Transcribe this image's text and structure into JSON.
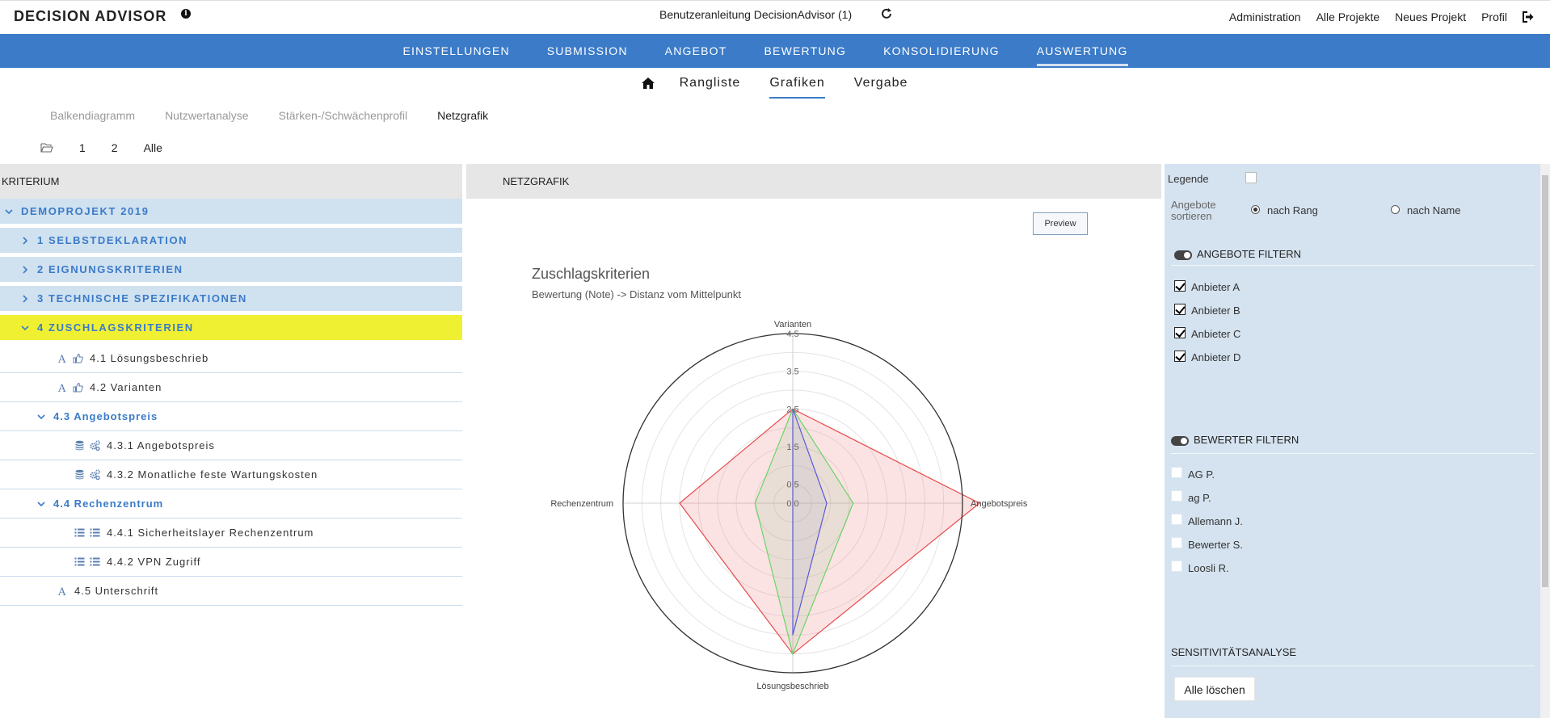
{
  "app": {
    "title": "DECISION ADVISOR",
    "document": "Benutzeranleitung DecisionAdvisor (1)"
  },
  "top_links": [
    "Administration",
    "Alle Projekte",
    "Neues Projekt",
    "Profil"
  ],
  "main_nav": [
    {
      "label": "EINSTELLUNGEN"
    },
    {
      "label": "SUBMISSION"
    },
    {
      "label": "ANGEBOT"
    },
    {
      "label": "BEWERTUNG"
    },
    {
      "label": "KONSOLIDIERUNG"
    },
    {
      "label": "AUSWERTUNG",
      "active": true
    }
  ],
  "sub_nav": [
    {
      "label": "Rangliste"
    },
    {
      "label": "Grafiken",
      "active": true
    },
    {
      "label": "Vergabe"
    }
  ],
  "chart_tabs": [
    {
      "label": "Balkendiagramm"
    },
    {
      "label": "Nutzwertanalyse"
    },
    {
      "label": "Stärken-/Schwächenprofil"
    },
    {
      "label": "Netzgrafik",
      "active": true
    }
  ],
  "page_nav": [
    "1",
    "2",
    "Alle"
  ],
  "left_panel": {
    "header": "KRITERIUM",
    "tree": [
      {
        "label": "DEMOPROJEKT 2019",
        "kind": "group",
        "level": 0,
        "expanded": true
      },
      {
        "label": "1 SELBSTDEKLARATION",
        "kind": "group",
        "level": 1
      },
      {
        "label": "2 EIGNUNGSKRITERIEN",
        "kind": "group",
        "level": 1
      },
      {
        "label": "3 TECHNISCHE SPEZIFIKATIONEN",
        "kind": "group",
        "level": 1
      },
      {
        "label": "4 ZUSCHLAGSKRITERIEN",
        "kind": "group",
        "level": 1,
        "expanded": true,
        "highlight": true
      },
      {
        "label": "4.1 Lösungsbeschrieb",
        "kind": "leaf",
        "level": 2,
        "icons": [
          "text-icon",
          "thumb-up-icon"
        ]
      },
      {
        "label": "4.2 Varianten",
        "kind": "leaf",
        "level": 2,
        "icons": [
          "text-icon",
          "thumb-up-icon"
        ]
      },
      {
        "label": "4.3 Angebotspreis",
        "kind": "sub",
        "level": 2,
        "expanded": true
      },
      {
        "label": "4.3.1 Angebotspreis",
        "kind": "leaf",
        "level": 3,
        "icons": [
          "database-icon",
          "gears-icon"
        ]
      },
      {
        "label": "4.3.2 Monatliche feste Wartungskosten",
        "kind": "leaf",
        "level": 3,
        "icons": [
          "database-icon",
          "gears-icon"
        ]
      },
      {
        "label": "4.4 Rechenzentrum",
        "kind": "sub",
        "level": 2,
        "expanded": true
      },
      {
        "label": "4.4.1 Sicherheitslayer Rechenzentrum",
        "kind": "leaf",
        "level": 3,
        "icons": [
          "list-icon",
          "list-icon"
        ]
      },
      {
        "label": "4.4.2 VPN Zugriff",
        "kind": "leaf",
        "level": 3,
        "icons": [
          "list-icon",
          "list-icon"
        ]
      },
      {
        "label": "4.5 Unterschrift",
        "kind": "leaf",
        "level": 1.5,
        "icons": [
          "text-icon"
        ]
      }
    ]
  },
  "center_panel": {
    "header": "NETZGRAFIK",
    "preview_label": "Preview"
  },
  "chart_data": {
    "type": "radar",
    "title": "Zuschlagskriterien",
    "subtitle": "Bewertung (Note) -> Distanz vom Mittelpunkt",
    "axes": [
      "Varianten",
      "Angebotspreis",
      "Lösungsbeschrieb",
      "Rechenzentrum"
    ],
    "r_range": [
      0,
      4.5
    ],
    "tick_labels": [
      "0.0",
      "0.5",
      "1.5",
      "2.5",
      "3.5",
      "4.5"
    ],
    "tick_values": [
      0,
      0.5,
      1.5,
      2.5,
      3.5,
      4.5
    ],
    "grid_values": [
      0.5,
      1,
      1.5,
      2,
      2.5,
      3,
      3.5,
      4,
      4.5
    ],
    "series": [
      {
        "color": "#e8494b",
        "fill": "rgba(240,128,128,0.22)",
        "values": [
          2.5,
          4.95,
          4.0,
          3.0
        ]
      },
      {
        "color": "#6ad46a",
        "fill": "rgba(150,200,150,0.18)",
        "values": [
          2.5,
          1.6,
          4.0,
          1.0
        ]
      },
      {
        "color": "#5a5ad8",
        "fill": "rgba(140,140,200,0.12)",
        "values": [
          2.5,
          0.9,
          3.5,
          0.0
        ]
      }
    ]
  },
  "right_panel": {
    "legend_label": "Legende",
    "sort_label": "Angebote sortieren",
    "sort_by_rank": "nach Rang",
    "sort_by_name": "nach Name",
    "offers_filter_title": "ANGEBOTE FILTERN",
    "offers": [
      {
        "label": "Anbieter A",
        "checked": true
      },
      {
        "label": "Anbieter B",
        "checked": true
      },
      {
        "label": "Anbieter C",
        "checked": true
      },
      {
        "label": "Anbieter D",
        "checked": true
      }
    ],
    "raters_filter_title": "BEWERTER FILTERN",
    "raters": [
      {
        "label": "AG P.",
        "checked": false
      },
      {
        "label": "ag P.",
        "checked": false
      },
      {
        "label": "Allemann J.",
        "checked": false
      },
      {
        "label": "Bewerter S.",
        "checked": false
      },
      {
        "label": "Loosli R.",
        "checked": false
      }
    ],
    "sensitivity_title": "SENSITIVITÄTSANALYSE",
    "clear_all_label": "Alle löschen"
  }
}
